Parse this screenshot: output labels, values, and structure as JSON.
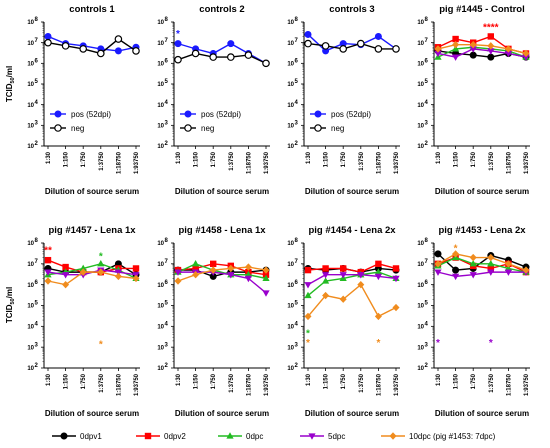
{
  "x_tick_labels": [
    "1:30",
    "1:150",
    "1:750",
    "1:3750",
    "1:18750",
    "1:93750"
  ],
  "x_axis_label": "Dilution of source serum",
  "y_axis_label_main": "TCID",
  "y_axis_label_sub": "50",
  "y_axis_label_unit": "/ml",
  "y_tick_labels": [
    "10",
    "10",
    "10",
    "10",
    "10",
    "10",
    "10"
  ],
  "y_tick_exponents": [
    "2",
    "3",
    "4",
    "5",
    "6",
    "7",
    "8"
  ],
  "legend": [
    {
      "label": "0dpv1",
      "color": "#000000",
      "marker": "circle"
    },
    {
      "label": "0dpv2",
      "color": "#ff0000",
      "marker": "square"
    },
    {
      "label": "0dpc",
      "color": "#22bb22",
      "marker": "triangle-up"
    },
    {
      "label": "5dpc",
      "color": "#9900cc",
      "marker": "triangle-down"
    },
    {
      "label": "10dpc (pig #1453: 7dpc)",
      "color": "#f08c1e",
      "marker": "diamond"
    }
  ],
  "chart_data": [
    {
      "type": "line",
      "title": "controls 1",
      "yscale": "log",
      "ylim": [
        100,
        100000000
      ],
      "categories": [
        "1:30",
        "1:150",
        "1:750",
        "1:3750",
        "1:18750",
        "1:93750"
      ],
      "legend": [
        {
          "label": "pos (52dpi)",
          "color": "#1a1aff",
          "marker": "circle-filled"
        },
        {
          "label": "neg",
          "color": "#000000",
          "marker": "circle-open"
        }
      ],
      "series": [
        {
          "name": "pos (52dpi)",
          "color": "#1a1aff",
          "marker": "circle-filled",
          "values": [
            20000000,
            9000000,
            7000000,
            5000000,
            4000000,
            6000000
          ]
        },
        {
          "name": "neg",
          "color": "#000000",
          "marker": "circle-open",
          "values": [
            10000000,
            7000000,
            5000000,
            3000000,
            15000000,
            4000000
          ]
        }
      ],
      "annotations": []
    },
    {
      "type": "line",
      "title": "controls 2",
      "yscale": "log",
      "ylim": [
        100,
        100000000
      ],
      "categories": [
        "1:30",
        "1:150",
        "1:750",
        "1:3750",
        "1:18750",
        "1:93750"
      ],
      "legend": [
        {
          "label": "pos (52dpi)",
          "color": "#1a1aff",
          "marker": "circle-filled"
        },
        {
          "label": "neg",
          "color": "#000000",
          "marker": "circle-open"
        }
      ],
      "series": [
        {
          "name": "pos (52dpi)",
          "color": "#1a1aff",
          "marker": "circle-filled",
          "values": [
            9000000,
            5000000,
            3000000,
            9000000,
            3000000,
            1000000
          ]
        },
        {
          "name": "neg",
          "color": "#000000",
          "marker": "circle-open",
          "values": [
            1500000,
            3000000,
            2000000,
            2000000,
            2500000,
            1000000
          ]
        }
      ],
      "annotations": [
        {
          "text": "*",
          "x": 0,
          "y": 30000000,
          "color": "#1a1aff"
        }
      ]
    },
    {
      "type": "line",
      "title": "controls 3",
      "yscale": "log",
      "ylim": [
        100,
        100000000
      ],
      "categories": [
        "1:30",
        "1:150",
        "1:750",
        "1:3750",
        "1:18750",
        "1:93750"
      ],
      "legend": [
        {
          "label": "pos (52dpi)",
          "color": "#1a1aff",
          "marker": "circle-filled"
        },
        {
          "label": "neg",
          "color": "#000000",
          "marker": "circle-open"
        }
      ],
      "series": [
        {
          "name": "pos (52dpi)",
          "color": "#1a1aff",
          "marker": "circle-filled",
          "values": [
            25000000,
            4000000,
            9000000,
            8000000,
            20000000,
            5000000
          ]
        },
        {
          "name": "neg",
          "color": "#000000",
          "marker": "circle-open",
          "values": [
            9000000,
            7000000,
            5000000,
            9000000,
            5000000,
            5000000
          ]
        }
      ],
      "annotations": []
    },
    {
      "type": "line",
      "title": "pig #1445 - Control",
      "yscale": "log",
      "ylim": [
        100,
        100000000
      ],
      "categories": [
        "1:30",
        "1:150",
        "1:750",
        "1:3750",
        "1:18750",
        "1:93750"
      ],
      "series": [
        {
          "color": "#000000",
          "marker": "circle",
          "values": [
            4000000,
            3000000,
            2500000,
            2000000,
            3000000,
            2000000
          ]
        },
        {
          "color": "#ff0000",
          "marker": "square",
          "values": [
            6000000,
            15000000,
            10000000,
            20000000,
            5000000,
            3000000
          ]
        },
        {
          "color": "#22bb22",
          "marker": "triangle-up",
          "values": [
            2000000,
            5000000,
            6000000,
            5000000,
            4000000,
            2000000
          ]
        },
        {
          "color": "#9900cc",
          "marker": "triangle-down",
          "values": [
            3000000,
            2000000,
            5000000,
            4000000,
            3000000,
            2000000
          ]
        },
        {
          "color": "#f08c1e",
          "marker": "diamond",
          "values": [
            5000000,
            8000000,
            8000000,
            7000000,
            5000000,
            3000000
          ]
        }
      ],
      "annotations": [
        {
          "text": "****",
          "x": 3,
          "y": 60000000,
          "color": "#ff0000"
        }
      ]
    },
    {
      "type": "line",
      "title": "pig #1457 - Lena 1x",
      "yscale": "log",
      "ylim": [
        100,
        100000000
      ],
      "categories": [
        "1:30",
        "1:150",
        "1:750",
        "1:3750",
        "1:18750",
        "1:93750"
      ],
      "series": [
        {
          "color": "#000000",
          "marker": "circle",
          "values": [
            6000000,
            4000000,
            4000000,
            4000000,
            10000000,
            3000000
          ]
        },
        {
          "color": "#ff0000",
          "marker": "square",
          "values": [
            15000000,
            7000000,
            4000000,
            4000000,
            6000000,
            6000000
          ]
        },
        {
          "color": "#22bb22",
          "marker": "triangle-up",
          "values": [
            3000000,
            4000000,
            6000000,
            10000000,
            5000000,
            2000000
          ]
        },
        {
          "color": "#9900cc",
          "marker": "triangle-down",
          "values": [
            4000000,
            3000000,
            3000000,
            5000000,
            4000000,
            3000000
          ]
        },
        {
          "color": "#f08c1e",
          "marker": "diamond",
          "values": [
            1500000,
            1000000,
            4000000,
            4000000,
            2500000,
            2000000
          ]
        }
      ],
      "annotations": [
        {
          "text": "**",
          "x": 0,
          "y": 50000000,
          "color": "#ff0000"
        },
        {
          "text": "*",
          "x": 3,
          "y": 25000000,
          "color": "#22bb22"
        },
        {
          "text": "*",
          "x": 3,
          "y": 1500,
          "color": "#f08c1e"
        }
      ]
    },
    {
      "type": "line",
      "title": "pig #1458 - Lena 1x",
      "yscale": "log",
      "ylim": [
        100,
        100000000
      ],
      "categories": [
        "1:30",
        "1:150",
        "1:750",
        "1:3750",
        "1:18750",
        "1:93750"
      ],
      "series": [
        {
          "color": "#000000",
          "marker": "circle",
          "values": [
            5000000,
            5000000,
            2500000,
            4000000,
            4000000,
            5000000
          ]
        },
        {
          "color": "#ff0000",
          "marker": "square",
          "values": [
            5000000,
            6000000,
            10000000,
            8000000,
            4000000,
            3000000
          ]
        },
        {
          "color": "#22bb22",
          "marker": "triangle-up",
          "values": [
            4000000,
            10000000,
            5000000,
            3000000,
            3000000,
            2000000
          ]
        },
        {
          "color": "#9900cc",
          "marker": "triangle-down",
          "values": [
            4000000,
            4000000,
            4000000,
            3000000,
            2000000,
            400000
          ]
        },
        {
          "color": "#f08c1e",
          "marker": "diamond",
          "values": [
            1500000,
            3000000,
            5000000,
            6000000,
            7000000,
            5000000
          ]
        }
      ],
      "annotations": []
    },
    {
      "type": "line",
      "title": "pig #1454 - Lena 2x",
      "yscale": "log",
      "ylim": [
        100,
        100000000
      ],
      "categories": [
        "1:30",
        "1:150",
        "1:750",
        "1:3750",
        "1:18750",
        "1:93750"
      ],
      "series": [
        {
          "color": "#000000",
          "marker": "circle",
          "values": [
            6000000,
            5000000,
            6000000,
            4000000,
            6000000,
            5000000
          ]
        },
        {
          "color": "#ff0000",
          "marker": "square",
          "values": [
            5000000,
            6000000,
            6000000,
            4000000,
            10000000,
            6000000
          ]
        },
        {
          "color": "#22bb22",
          "marker": "triangle-up",
          "values": [
            300000,
            1500000,
            2000000,
            3000000,
            4000000,
            2000000
          ]
        },
        {
          "color": "#9900cc",
          "marker": "triangle-down",
          "values": [
            1000000,
            3000000,
            3000000,
            3000000,
            2500000,
            2000000
          ]
        },
        {
          "color": "#f08c1e",
          "marker": "diamond",
          "values": [
            30000,
            300000,
            200000,
            1000000,
            30000,
            80000
          ]
        }
      ],
      "annotations": [
        {
          "text": "*",
          "x": 0,
          "y": 5000,
          "color": "#22bb22"
        },
        {
          "text": "*",
          "x": 0,
          "y": 1800,
          "color": "#f08c1e"
        },
        {
          "text": "*",
          "x": 4,
          "y": 1800,
          "color": "#f08c1e"
        }
      ]
    },
    {
      "type": "line",
      "title": "pig #1453 - Lena 2x",
      "yscale": "log",
      "ylim": [
        100,
        100000000
      ],
      "categories": [
        "1:30",
        "1:150",
        "1:750",
        "1:3750",
        "1:18750",
        "1:93750"
      ],
      "series": [
        {
          "color": "#000000",
          "marker": "circle",
          "values": [
            30000000,
            5000000,
            6000000,
            25000000,
            15000000,
            7000000
          ]
        },
        {
          "color": "#ff0000",
          "marker": "square",
          "values": [
            10000000,
            20000000,
            8000000,
            6000000,
            10000000,
            4000000
          ]
        },
        {
          "color": "#22bb22",
          "marker": "triangle-up",
          "values": [
            8000000,
            20000000,
            10000000,
            10000000,
            6000000,
            4000000
          ]
        },
        {
          "color": "#9900cc",
          "marker": "triangle-down",
          "values": [
            4000000,
            2500000,
            3000000,
            4000000,
            4000000,
            4000000
          ]
        },
        {
          "color": "#f08c1e",
          "marker": "diamond",
          "values": [
            10000000,
            30000000,
            20000000,
            20000000,
            10000000,
            5000000
          ]
        }
      ],
      "annotations": [
        {
          "text": "*",
          "x": 1,
          "y": 60000000,
          "color": "#f08c1e"
        },
        {
          "text": "*",
          "x": 0,
          "y": 1800,
          "color": "#9900cc"
        },
        {
          "text": "*",
          "x": 3,
          "y": 1800,
          "color": "#9900cc"
        }
      ]
    }
  ]
}
